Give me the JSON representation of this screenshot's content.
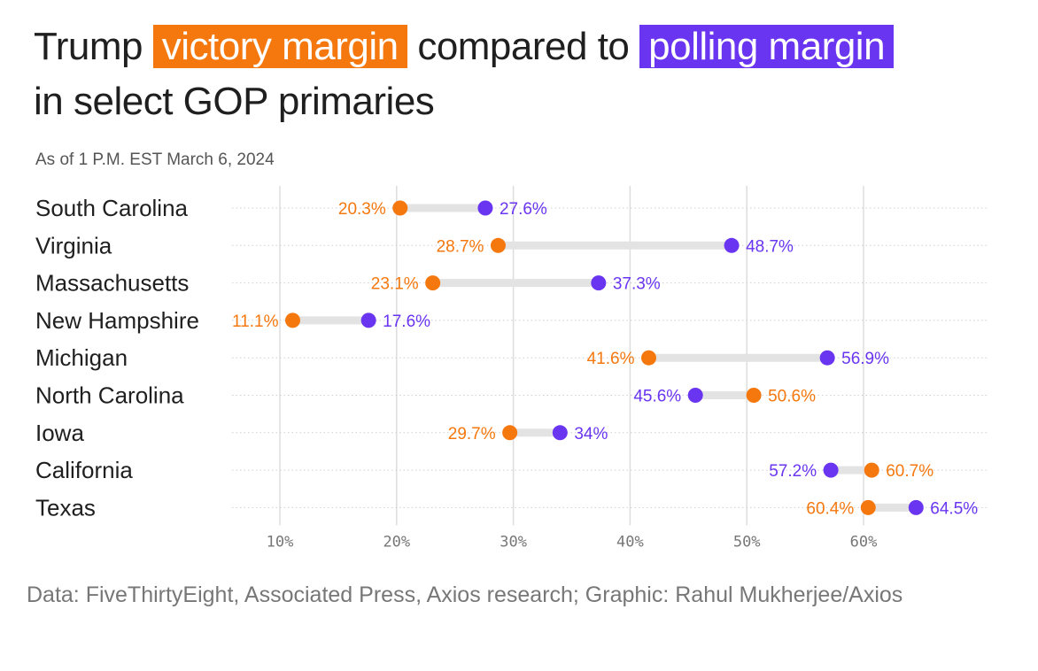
{
  "header": {
    "title_part1": "Trump",
    "title_highlight1": "victory margin",
    "title_part2": "compared to",
    "title_highlight2": "polling margin",
    "title_part3": "in select GOP primaries",
    "subtitle": "As of 1 P.M. EST March 6, 2024"
  },
  "footer": {
    "source": "Data: FiveThirtyEight, Associated Press, Axios research; Graphic: Rahul Mukherjee/Axios"
  },
  "colors": {
    "victory": "#f5780e",
    "polling": "#6a35f0",
    "connector": "#e3e3e3",
    "gridline": "#dddddd"
  },
  "chart_data": {
    "type": "dumbbell",
    "categories": [
      "South Carolina",
      "Virginia",
      "Massachusetts",
      "New Hampshire",
      "Michigan",
      "North Carolina",
      "Iowa",
      "California",
      "Texas"
    ],
    "series": [
      {
        "name": "victory margin",
        "values": [
          20.3,
          28.7,
          23.1,
          11.1,
          41.6,
          50.6,
          29.7,
          60.7,
          60.4
        ],
        "labels": [
          "20.3%",
          "28.7%",
          "23.1%",
          "11.1%",
          "41.6%",
          "50.6%",
          "29.7%",
          "60.7%",
          "60.4%"
        ]
      },
      {
        "name": "polling margin",
        "values": [
          27.6,
          48.7,
          37.3,
          17.6,
          56.9,
          45.6,
          34,
          57.2,
          64.5
        ],
        "labels": [
          "27.6%",
          "48.7%",
          "37.3%",
          "17.6%",
          "56.9%",
          "45.6%",
          "34%",
          "57.2%",
          "64.5%"
        ]
      }
    ],
    "x_ticks": [
      10,
      20,
      30,
      40,
      50,
      60
    ],
    "x_tick_labels": [
      "10%",
      "20%",
      "30%",
      "40%",
      "50%",
      "60%"
    ],
    "xlim": [
      6,
      71
    ],
    "grid": true
  }
}
